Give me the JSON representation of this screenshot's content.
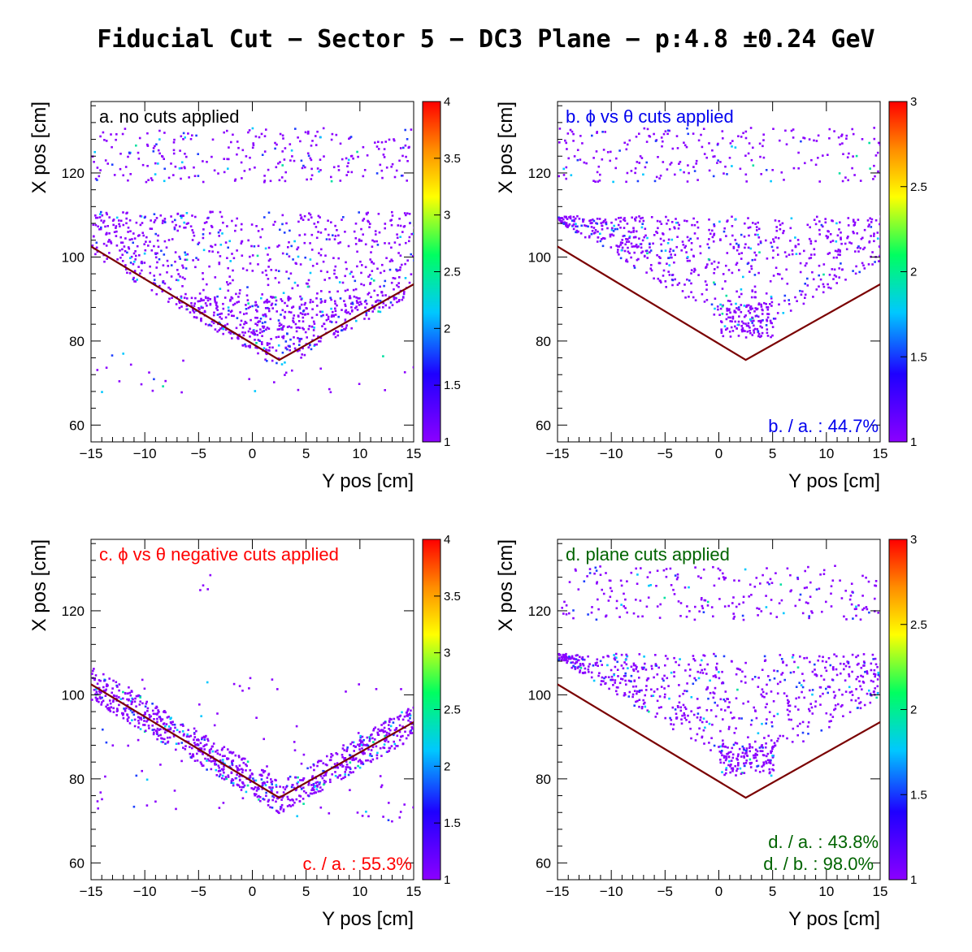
{
  "figure": {
    "title": "Fiducial Cut − Sector 5 − DC3 Plane −  p:4.8 ±0.24 GeV"
  },
  "chart_data": [
    {
      "type": "heatmap",
      "panel": "a",
      "xlabel": "Y pos [cm]",
      "ylabel": "X pos [cm]",
      "xlim": [
        -15,
        15
      ],
      "ylim": [
        56,
        137
      ],
      "xticks": [
        "−15",
        "−10",
        "−5",
        "0",
        "5",
        "10",
        "15"
      ],
      "yticks": [
        "60",
        "80",
        "100",
        "120"
      ],
      "colorbar": {
        "min": 1,
        "max": 4,
        "ticks": [
          "1",
          "1.5",
          "2",
          "2.5",
          "3",
          "3.5",
          "4"
        ]
      },
      "annotations": [
        {
          "text": "a. no cuts applied",
          "color": "#000000",
          "position": "top-left"
        }
      ],
      "cut_line": [
        [
          -15,
          102.5
        ],
        [
          2.5,
          75.5
        ],
        [
          15,
          93.5
        ]
      ],
      "distribution": "bands: upper band X 118–131 across Y; lower band from cut line up to ~110, dense near X 78–90, Y 0–10"
    },
    {
      "type": "heatmap",
      "panel": "b",
      "xlabel": "Y pos [cm]",
      "ylabel": "X pos [cm]",
      "xlim": [
        -15,
        15
      ],
      "ylim": [
        56,
        137
      ],
      "xticks": [
        "−15",
        "−10",
        "−5",
        "0",
        "5",
        "10",
        "15"
      ],
      "yticks": [
        "60",
        "80",
        "100",
        "120"
      ],
      "colorbar": {
        "min": 1,
        "max": 3,
        "ticks": [
          "1",
          "1.5",
          "2",
          "2.5",
          "3"
        ]
      },
      "annotations": [
        {
          "text": "b. ϕ vs θ cuts applied",
          "color": "#0000ee",
          "position": "top-left"
        },
        {
          "text": "b. / a. : 44.7%",
          "color": "#0000ee",
          "position": "bottom-right"
        }
      ],
      "cut_line": [
        [
          -15,
          102.5
        ],
        [
          2.5,
          75.5
        ],
        [
          15,
          93.5
        ]
      ],
      "distribution": "upper band X 118–131; lower region inside V with apex near Y 1–4, X 81"
    },
    {
      "type": "heatmap",
      "panel": "c",
      "xlabel": "Y pos [cm]",
      "ylabel": "X pos [cm]",
      "xlim": [
        -15,
        15
      ],
      "ylim": [
        56,
        137
      ],
      "xticks": [
        "−15",
        "−10",
        "−5",
        "0",
        "5",
        "10",
        "15"
      ],
      "yticks": [
        "60",
        "80",
        "100",
        "120"
      ],
      "colorbar": {
        "min": 1,
        "max": 4,
        "ticks": [
          "1",
          "1.5",
          "2",
          "2.5",
          "3",
          "3.5",
          "4"
        ]
      },
      "annotations": [
        {
          "text": "c. ϕ vs θ negative cuts applied",
          "color": "#ff0000",
          "position": "top-left"
        },
        {
          "text": "c. / a. : 55.3%",
          "color": "#ff0000",
          "position": "bottom-right"
        }
      ],
      "cut_line": [
        [
          -15,
          102.5
        ],
        [
          2.5,
          75.5
        ],
        [
          15,
          93.5
        ]
      ],
      "distribution": "points concentrated along the V-shaped cut line, few scattered elsewhere"
    },
    {
      "type": "heatmap",
      "panel": "d",
      "xlabel": "Y pos [cm]",
      "ylabel": "X pos [cm]",
      "xlim": [
        -15,
        15
      ],
      "ylim": [
        56,
        137
      ],
      "xticks": [
        "−15",
        "−10",
        "−5",
        "0",
        "5",
        "10",
        "15"
      ],
      "yticks": [
        "60",
        "80",
        "100",
        "120"
      ],
      "colorbar": {
        "min": 1,
        "max": 3,
        "ticks": [
          "1",
          "1.5",
          "2",
          "2.5",
          "3"
        ]
      },
      "annotations": [
        {
          "text": "d. plane cuts applied",
          "color": "#006400",
          "position": "top-left"
        },
        {
          "text": "d. / a. : 43.8%",
          "color": "#006400",
          "position": "bottom-right"
        },
        {
          "text": "d. / b. : 98.0%",
          "color": "#006400",
          "position": "bottom-right"
        }
      ],
      "cut_line": [
        [
          -15,
          102.5
        ],
        [
          2.5,
          75.5
        ],
        [
          15,
          93.5
        ]
      ],
      "distribution": "similar to panel b"
    }
  ]
}
